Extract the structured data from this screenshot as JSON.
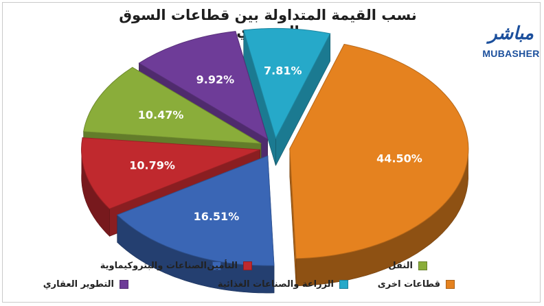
{
  "title": "نسب القيمة المتداولة بين قطاعات السوق السعودي",
  "logo": {
    "arabic": "مباشر",
    "english": "MUBASHER"
  },
  "chart_data": {
    "type": "pie",
    "title": "نسب القيمة المتداولة بين قطاعات السوق السعودي",
    "slices": [
      {
        "label": "قطاعات اخرى",
        "value": 44.5,
        "display": "44.50%",
        "color": "#e5821f"
      },
      {
        "label": "الصناعات والبتروكيماوية",
        "value": 16.51,
        "display": "16.51%",
        "color": "#3a66b5"
      },
      {
        "label": "التأمين",
        "value": 10.79,
        "display": "10.79%",
        "color": "#c0292e"
      },
      {
        "label": "النقل",
        "value": 10.47,
        "display": "10.47%",
        "color": "#8aad3a"
      },
      {
        "label": "التطوير العقاري",
        "value": 9.92,
        "display": "9.92%",
        "color": "#6e3c98"
      },
      {
        "label": "الزراعة والصناعات الغذائية",
        "value": 7.81,
        "display": "7.81%",
        "color": "#26a9c9"
      }
    ],
    "legend_placement": "bottom"
  },
  "legend": [
    {
      "label": "الصناعات والبتروكيماوية",
      "color": "#3a66b5"
    },
    {
      "label": "التأمين",
      "color": "#c0292e"
    },
    {
      "label": "النقل",
      "color": "#8aad3a"
    },
    {
      "label": "التطوير العقاري",
      "color": "#6e3c98"
    },
    {
      "label": "الزراعة والصناعات الغذائية",
      "color": "#26a9c9"
    },
    {
      "label": "قطاعات اخرى",
      "color": "#e5821f"
    }
  ]
}
